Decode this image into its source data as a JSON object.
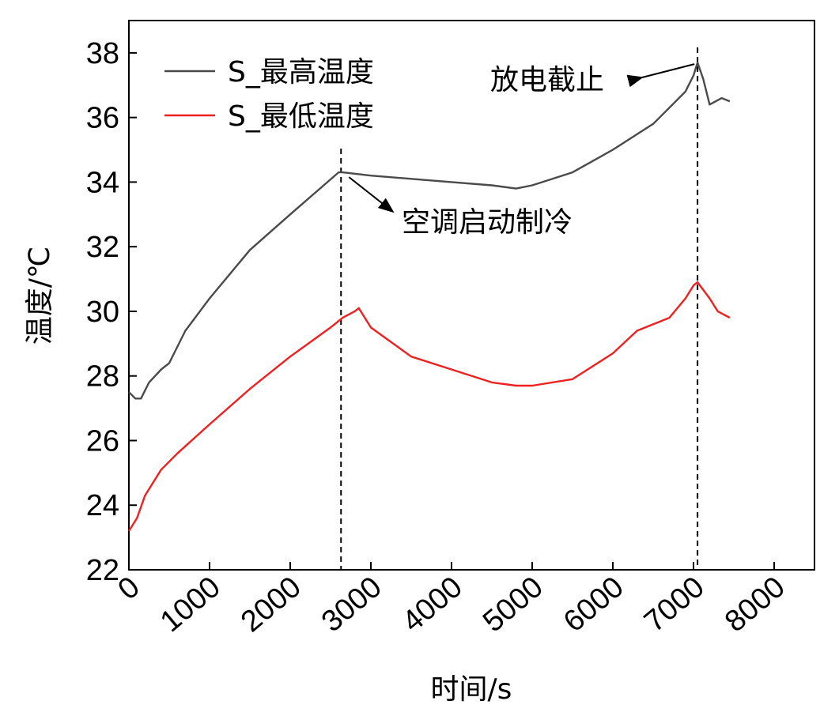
{
  "chart_data": {
    "type": "line",
    "title": "",
    "xlabel": "时间/s",
    "ylabel": "温度/℃",
    "xlim": [
      0,
      8500
    ],
    "ylim": [
      22,
      39
    ],
    "xticks": [
      0,
      1000,
      2000,
      3000,
      4000,
      5000,
      6000,
      7000,
      8000
    ],
    "xtick_labels": [
      "0",
      "1000",
      "2000",
      "3000",
      "4000",
      "5000",
      "6000",
      "7000",
      "8000"
    ],
    "yticks": [
      22,
      24,
      26,
      28,
      30,
      32,
      34,
      36,
      38
    ],
    "ytick_labels": [
      "22",
      "24",
      "26",
      "28",
      "30",
      "32",
      "34",
      "36",
      "38"
    ],
    "grid": false,
    "legend_position": "top-left",
    "series": [
      {
        "name": "S_最高温度",
        "color": "#4a4a4a",
        "x": [
          0,
          80,
          150,
          250,
          400,
          500,
          700,
          1000,
          1500,
          2000,
          2600,
          2650,
          3000,
          3500,
          4000,
          4500,
          4800,
          5000,
          5500,
          6000,
          6500,
          6900,
          7000,
          7050,
          7120,
          7200,
          7350,
          7450
        ],
        "y": [
          27.5,
          27.3,
          27.3,
          27.8,
          28.2,
          28.4,
          29.4,
          30.4,
          31.9,
          33.0,
          34.3,
          34.3,
          34.2,
          34.1,
          34.0,
          33.9,
          33.8,
          33.9,
          34.3,
          35.0,
          35.8,
          36.8,
          37.3,
          37.7,
          37.2,
          36.4,
          36.6,
          36.5
        ]
      },
      {
        "name": "S_最低温度",
        "color": "#ee2020",
        "x": [
          0,
          100,
          200,
          400,
          600,
          1000,
          1500,
          2000,
          2500,
          2650,
          2800,
          2850,
          3000,
          3500,
          4000,
          4500,
          4800,
          5000,
          5500,
          6000,
          6300,
          6700,
          6900,
          7000,
          7050,
          7200,
          7300,
          7450
        ],
        "y": [
          23.2,
          23.6,
          24.3,
          25.1,
          25.6,
          26.5,
          27.6,
          28.6,
          29.5,
          29.8,
          30.0,
          30.1,
          29.5,
          28.6,
          28.2,
          27.8,
          27.7,
          27.7,
          27.9,
          28.7,
          29.4,
          29.8,
          30.4,
          30.8,
          30.9,
          30.4,
          30.0,
          29.8
        ]
      }
    ],
    "annotations": [
      {
        "text": "放电截止",
        "point": [
          7050,
          37.7
        ]
      },
      {
        "text": "空调启动制冷",
        "point": [
          2650,
          34.3
        ]
      }
    ],
    "vlines": [
      2630,
      7050
    ]
  }
}
